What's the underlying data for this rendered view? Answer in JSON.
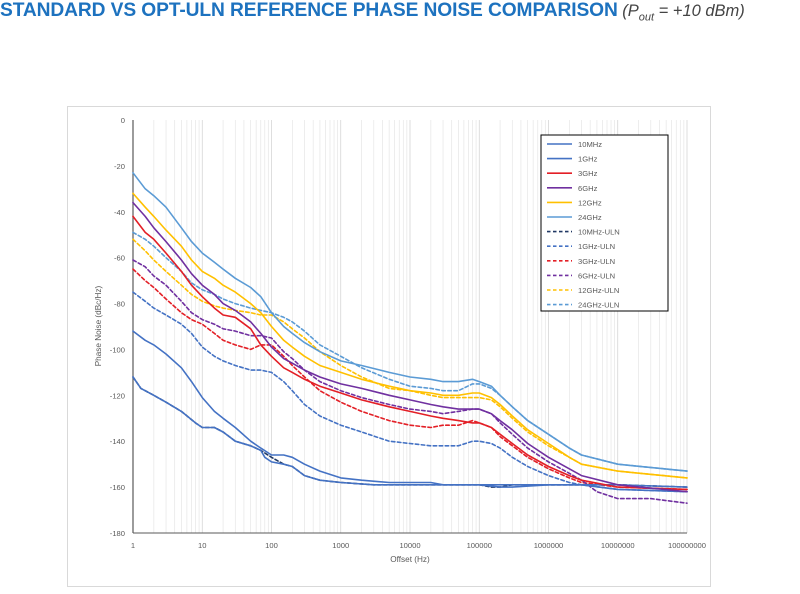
{
  "page": {
    "title_main": "STANDARD VS OPT-ULN REFERENCE PHASE NOISE COMPARISON",
    "title_cond_prefix": "(P",
    "title_cond_sub": "out",
    "title_cond_suffix": " = +10 dBm)"
  },
  "chart_data": {
    "type": "line",
    "title": "STANDARD VS OPT-ULN REFERENCE PHASE NOISE COMPARISON (Pout = +10 dBm)",
    "xlabel": "Offset (Hz)",
    "ylabel": "Phase Noise (dBc/Hz)",
    "xscale": "log",
    "xlim": [
      1,
      100000000
    ],
    "ylim": [
      -180,
      0
    ],
    "grid": "vertical major and minor (log), no horizontal",
    "legend_position": "top-right",
    "x_ticks": [
      1,
      10,
      100,
      1000,
      10000,
      100000,
      1000000,
      10000000,
      100000000
    ],
    "x_tick_labels": [
      "1",
      "10",
      "100",
      "1000",
      "10000",
      "100000",
      "1000000",
      "10000000",
      "100000000"
    ],
    "y_ticks": [
      0,
      -20,
      -40,
      -60,
      -80,
      -100,
      -120,
      -140,
      -160,
      -180
    ],
    "y_tick_labels": [
      "0",
      "-20",
      "-40",
      "-60",
      "-80",
      "-100",
      "-120",
      "-140",
      "-160",
      "-180"
    ],
    "series": [
      {
        "name": "10MHz",
        "color": "#4472c4",
        "dash": "solid",
        "x": [
          1,
          1.3,
          2,
          3,
          5,
          8,
          10,
          15,
          20,
          30,
          50,
          70,
          80,
          100,
          150,
          200,
          300,
          500,
          1000,
          3000,
          10000,
          30000,
          100000,
          200000,
          300000,
          1000000,
          3000000,
          10000000,
          100000000
        ],
        "y": [
          -112,
          -117,
          -120,
          -123,
          -127,
          -132,
          -134,
          -134,
          -136,
          -140,
          -142,
          -144,
          -147,
          -149,
          -150,
          -151,
          -155,
          -157,
          -158,
          -159,
          -159,
          -159,
          -159,
          -160,
          -160,
          -159,
          -159,
          -159,
          -160
        ]
      },
      {
        "name": "1GHz",
        "color": "#4472c4",
        "dash": "solid",
        "x": [
          1,
          1.5,
          2,
          3,
          5,
          7,
          10,
          15,
          20,
          30,
          50,
          70,
          100,
          150,
          200,
          300,
          500,
          1000,
          2000,
          5000,
          10000,
          20000,
          30000,
          50000,
          80000,
          100000,
          150000,
          200000,
          300000,
          500000,
          1000000,
          2000000,
          3000000,
          10000000,
          100000000
        ],
        "y": [
          -92,
          -96,
          -98,
          -102,
          -108,
          -114,
          -121,
          -127,
          -130,
          -134,
          -140,
          -143,
          -146,
          -146,
          -147,
          -150,
          -153,
          -156,
          -157,
          -158,
          -158,
          -158,
          -159,
          -159,
          -159,
          -159,
          -159,
          -159,
          -159,
          -159,
          -159,
          -159,
          -159,
          -161,
          -162
        ]
      },
      {
        "name": "3GHz",
        "color": "#e31f26",
        "dash": "solid",
        "x": [
          1,
          1.5,
          2,
          3,
          5,
          7,
          10,
          15,
          20,
          30,
          50,
          70,
          100,
          150,
          200,
          300,
          500,
          1000,
          2000,
          5000,
          10000,
          20000,
          30000,
          50000,
          80000,
          100000,
          150000,
          200000,
          300000,
          500000,
          1000000,
          2000000,
          3000000,
          10000000,
          100000000
        ],
        "y": [
          -42,
          -49,
          -52,
          -58,
          -66,
          -72,
          -77,
          -82,
          -85,
          -86,
          -91,
          -98,
          -103,
          -108,
          -110,
          -113,
          -116,
          -119,
          -122,
          -125,
          -127,
          -129,
          -130,
          -131,
          -132,
          -132,
          -134,
          -137,
          -141,
          -146,
          -151,
          -155,
          -157,
          -160,
          -161
        ]
      },
      {
        "name": "6GHz",
        "color": "#7030a0",
        "dash": "solid",
        "x": [
          1,
          1.5,
          2,
          3,
          5,
          7,
          10,
          15,
          20,
          30,
          50,
          70,
          100,
          150,
          200,
          300,
          500,
          1000,
          2000,
          5000,
          10000,
          20000,
          30000,
          50000,
          80000,
          100000,
          150000,
          200000,
          300000,
          500000,
          1000000,
          2000000,
          3000000,
          10000000,
          100000000
        ],
        "y": [
          -36,
          -42,
          -47,
          -53,
          -61,
          -67,
          -72,
          -76,
          -80,
          -83,
          -88,
          -93,
          -99,
          -104,
          -106,
          -109,
          -112,
          -115,
          -117,
          -120,
          -122,
          -124,
          -125,
          -126,
          -126,
          -126,
          -128,
          -131,
          -135,
          -141,
          -147,
          -152,
          -155,
          -159,
          -162
        ]
      },
      {
        "name": "12GHz",
        "color": "#ffc000",
        "dash": "solid",
        "x": [
          1,
          1.5,
          2,
          3,
          5,
          7,
          10,
          15,
          20,
          30,
          50,
          70,
          100,
          150,
          200,
          300,
          500,
          1000,
          2000,
          5000,
          10000,
          20000,
          30000,
          50000,
          80000,
          100000,
          150000,
          200000,
          300000,
          500000,
          1000000,
          2000000,
          3000000,
          10000000,
          100000000
        ],
        "y": [
          -32,
          -38,
          -42,
          -48,
          -55,
          -61,
          -66,
          -69,
          -72,
          -75,
          -80,
          -84,
          -90,
          -96,
          -99,
          -103,
          -107,
          -110,
          -113,
          -116,
          -118,
          -119,
          -120,
          -120,
          -119,
          -119,
          -121,
          -124,
          -129,
          -135,
          -141,
          -147,
          -150,
          -153,
          -156
        ]
      },
      {
        "name": "24GHz",
        "color": "#5b9bd5",
        "dash": "solid",
        "x": [
          1,
          1.5,
          2,
          3,
          5,
          7,
          10,
          15,
          20,
          30,
          50,
          70,
          100,
          150,
          200,
          300,
          500,
          1000,
          2000,
          5000,
          10000,
          20000,
          30000,
          50000,
          80000,
          100000,
          150000,
          200000,
          300000,
          500000,
          1000000,
          2000000,
          3000000,
          10000000,
          100000000
        ],
        "y": [
          -23,
          -30,
          -33,
          -38,
          -47,
          -53,
          -58,
          -62,
          -65,
          -69,
          -73,
          -77,
          -84,
          -90,
          -93,
          -97,
          -101,
          -105,
          -107,
          -110,
          -112,
          -113,
          -114,
          -114,
          -113,
          -114,
          -116,
          -120,
          -125,
          -131,
          -137,
          -143,
          -146,
          -150,
          -153
        ]
      },
      {
        "name": "10MHz-ULN",
        "color": "#203864",
        "dash": "dashed",
        "x": [
          1,
          1.3,
          2,
          3,
          5,
          8,
          10,
          15,
          20,
          30,
          50,
          70,
          100,
          150,
          200,
          300,
          500,
          1000,
          3000,
          10000,
          30000,
          100000,
          150000,
          200000,
          300000,
          1000000,
          3000000,
          10000000,
          100000000
        ],
        "y": [
          -112,
          -117,
          -120,
          -123,
          -127,
          -132,
          -134,
          -134,
          -136,
          -140,
          -142,
          -144,
          -147,
          -150,
          -151,
          -155,
          -157,
          -158,
          -159,
          -159,
          -159,
          -159,
          -160,
          -160,
          -159,
          -159,
          -159,
          -159,
          -160
        ]
      },
      {
        "name": "1GHz-ULN",
        "color": "#4472c4",
        "dash": "dashed",
        "x": [
          1,
          1.5,
          2,
          3,
          5,
          7,
          10,
          15,
          20,
          30,
          50,
          70,
          100,
          150,
          200,
          300,
          500,
          1000,
          2000,
          5000,
          10000,
          20000,
          30000,
          50000,
          80000,
          100000,
          150000,
          200000,
          300000,
          500000,
          1000000,
          2000000,
          3000000,
          10000000,
          100000000
        ],
        "y": [
          -75,
          -79,
          -82,
          -85,
          -89,
          -93,
          -99,
          -103,
          -105,
          -107,
          -109,
          -109,
          -110,
          -114,
          -118,
          -124,
          -129,
          -133,
          -136,
          -140,
          -141,
          -142,
          -142,
          -142,
          -140,
          -140,
          -141,
          -143,
          -147,
          -151,
          -155,
          -158,
          -159,
          -161,
          -162
        ]
      },
      {
        "name": "3GHz-ULN",
        "color": "#e31f26",
        "dash": "dashed",
        "x": [
          1,
          1.5,
          2,
          3,
          5,
          7,
          10,
          15,
          20,
          30,
          50,
          70,
          100,
          150,
          200,
          300,
          500,
          1000,
          2000,
          5000,
          10000,
          20000,
          30000,
          50000,
          80000,
          100000,
          150000,
          200000,
          300000,
          500000,
          1000000,
          2000000,
          3000000,
          10000000,
          100000000
        ],
        "y": [
          -65,
          -70,
          -73,
          -78,
          -84,
          -87,
          -89,
          -93,
          -96,
          -98,
          -100,
          -98,
          -98,
          -103,
          -107,
          -112,
          -118,
          -123,
          -127,
          -131,
          -133,
          -134,
          -133,
          -133,
          -131,
          -132,
          -134,
          -138,
          -142,
          -147,
          -152,
          -156,
          -158,
          -160,
          -161
        ]
      },
      {
        "name": "6GHz-ULN",
        "color": "#7030a0",
        "dash": "dashed",
        "x": [
          1,
          1.5,
          2,
          3,
          5,
          7,
          10,
          15,
          20,
          30,
          50,
          70,
          100,
          150,
          200,
          300,
          500,
          1000,
          2000,
          5000,
          10000,
          20000,
          30000,
          50000,
          80000,
          100000,
          150000,
          200000,
          300000,
          500000,
          1000000,
          2000000,
          3000000,
          5000000,
          10000000,
          30000000,
          100000000
        ],
        "y": [
          -61,
          -64,
          -68,
          -72,
          -79,
          -84,
          -87,
          -89,
          -91,
          -92,
          -94,
          -94,
          -95,
          -101,
          -104,
          -109,
          -114,
          -118,
          -121,
          -124,
          -126,
          -127,
          -128,
          -127,
          -126,
          -126,
          -128,
          -132,
          -137,
          -143,
          -149,
          -154,
          -157,
          -162,
          -165,
          -165,
          -167
        ]
      },
      {
        "name": "12GHz-ULN",
        "color": "#ffc000",
        "dash": "dashed",
        "x": [
          1,
          1.5,
          2,
          3,
          5,
          7,
          10,
          15,
          20,
          30,
          50,
          70,
          100,
          150,
          200,
          300,
          500,
          1000,
          2000,
          5000,
          10000,
          20000,
          30000,
          50000,
          80000,
          100000,
          150000,
          200000,
          300000,
          500000,
          1000000,
          2000000,
          3000000,
          10000000,
          100000000
        ],
        "y": [
          -52,
          -57,
          -61,
          -66,
          -72,
          -76,
          -79,
          -81,
          -82,
          -83,
          -84,
          -85,
          -85,
          -88,
          -91,
          -95,
          -101,
          -107,
          -112,
          -117,
          -118,
          -120,
          -121,
          -121,
          -121,
          -121,
          -122,
          -125,
          -130,
          -136,
          -142,
          -147,
          -150,
          -153,
          -156
        ]
      },
      {
        "name": "24GHz-ULN",
        "color": "#5b9bd5",
        "dash": "dashed",
        "x": [
          1,
          1.5,
          2,
          3,
          5,
          7,
          10,
          15,
          20,
          30,
          50,
          70,
          100,
          150,
          200,
          300,
          500,
          1000,
          2000,
          5000,
          10000,
          20000,
          30000,
          50000,
          80000,
          100000,
          150000,
          200000,
          300000,
          500000,
          1000000,
          2000000,
          3000000,
          10000000,
          100000000
        ],
        "y": [
          -49,
          -52,
          -55,
          -60,
          -66,
          -71,
          -74,
          -76,
          -78,
          -80,
          -82,
          -83,
          -84,
          -86,
          -88,
          -92,
          -98,
          -103,
          -108,
          -113,
          -116,
          -117,
          -118,
          -118,
          -115,
          -115,
          -117,
          -120,
          -125,
          -131,
          -137,
          -143,
          -146,
          -150,
          -153
        ]
      }
    ]
  }
}
